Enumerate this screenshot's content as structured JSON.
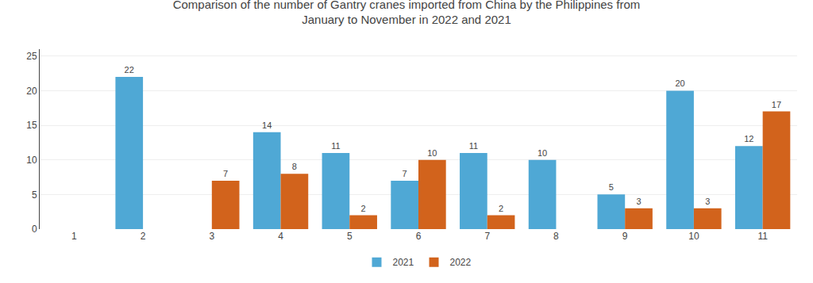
{
  "chart_data": {
    "type": "bar",
    "title": "Comparison of the number of Gantry cranes imported from China by the Philippines from\nJanuary to November in 2022 and 2021",
    "categories": [
      "1",
      "2",
      "3",
      "4",
      "5",
      "6",
      "7",
      "8",
      "9",
      "10",
      "11"
    ],
    "series": [
      {
        "name": "2021",
        "color": "#4fa8d5",
        "values": [
          0,
          22,
          0,
          14,
          11,
          7,
          11,
          10,
          5,
          20,
          12
        ]
      },
      {
        "name": "2022",
        "color": "#d2631c",
        "values": [
          0,
          0,
          7,
          8,
          2,
          10,
          2,
          0,
          3,
          3,
          17
        ]
      }
    ],
    "ylim": [
      0,
      26
    ],
    "yticks": [
      0,
      5,
      10,
      15,
      20,
      25
    ],
    "grid": true,
    "legend": "bottom",
    "data_labels": true
  }
}
